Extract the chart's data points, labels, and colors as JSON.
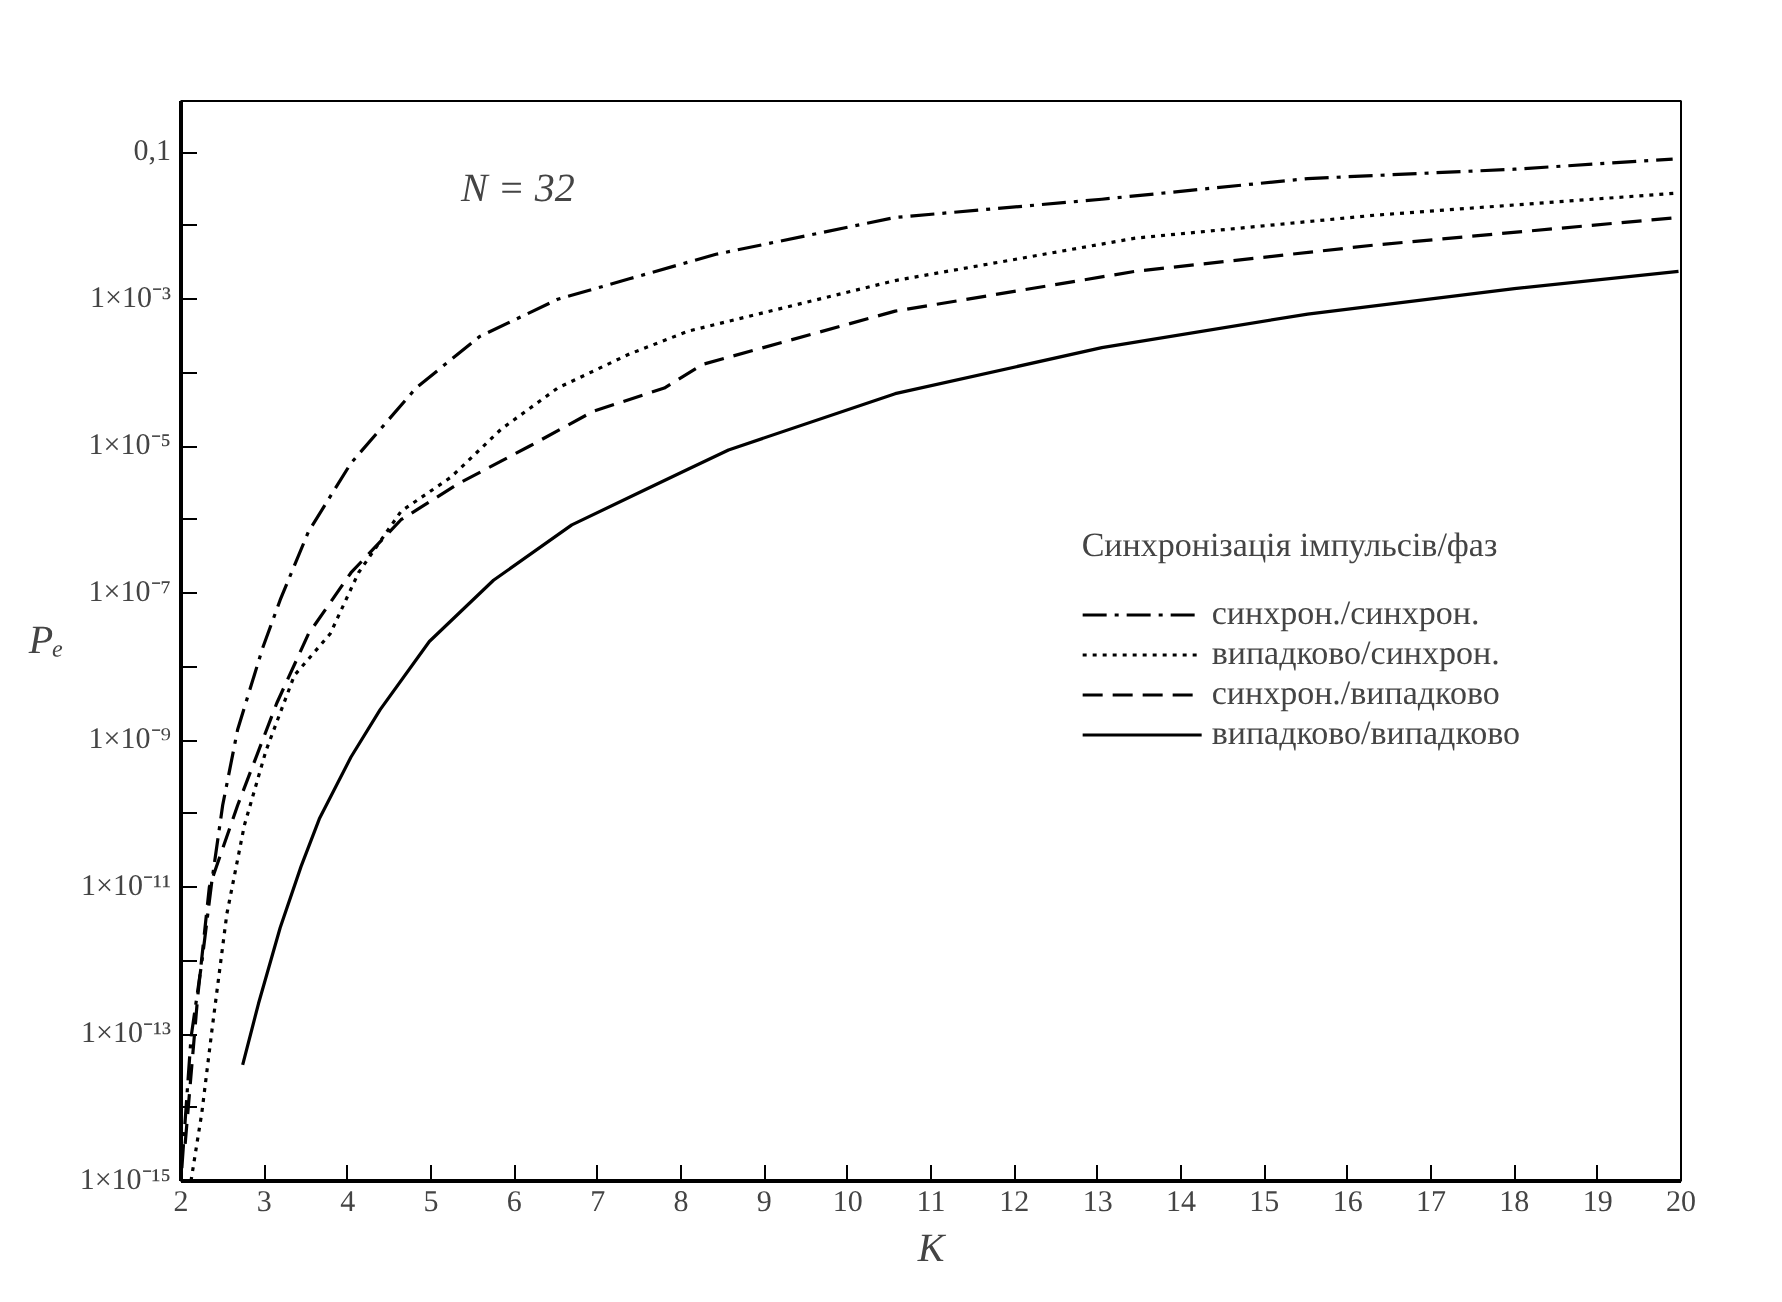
{
  "chart_data": {
    "type": "line",
    "xlabel": "K",
    "ylabel": "Pₑ",
    "legend_title": "Синхронізація імпульсів/фаз",
    "annotations": [
      "N = 32"
    ],
    "log": "y",
    "grid": false,
    "legend": "right",
    "marker": "none",
    "xlim": [
      2,
      20
    ],
    "xticks": [
      2,
      3,
      4,
      5,
      6,
      7,
      8,
      9,
      10,
      11,
      12,
      13,
      14,
      15,
      16,
      17,
      18,
      19,
      20
    ],
    "ylim": [
      1e-15,
      0.5
    ],
    "yticks": [
      {
        "value": 1e-15,
        "label": "1×10⁻¹⁵"
      },
      {
        "value": 1e-14,
        "label": null
      },
      {
        "value": 1e-13,
        "label": "1×10⁻¹³"
      },
      {
        "value": 1e-12,
        "label": null
      },
      {
        "value": 1e-11,
        "label": "1×10⁻¹¹"
      },
      {
        "value": 1e-10,
        "label": null
      },
      {
        "value": 1e-09,
        "label": "1×10⁻⁹"
      },
      {
        "value": 1e-08,
        "label": null
      },
      {
        "value": 1e-07,
        "label": "1×10⁻⁷"
      },
      {
        "value": 1e-06,
        "label": null
      },
      {
        "value": 1e-05,
        "label": "1×10⁻⁵"
      },
      {
        "value": 0.0001,
        "label": null
      },
      {
        "value": 0.001,
        "label": "1×10⁻³"
      },
      {
        "value": 0.01,
        "label": null
      },
      {
        "value": 0.1,
        "label": "0,1"
      }
    ],
    "series": [
      {
        "name": "синхрон./синхрон.",
        "color": "#000000",
        "line_style": "dashdot",
        "x": [
          2.01,
          2.12,
          2.25,
          2.37,
          2.5,
          2.68,
          2.98,
          3.19,
          3.53,
          4.04,
          4.82,
          5.58,
          6.52,
          7.38,
          8.42,
          10.57,
          13.05,
          15.52,
          18.0,
          19.9
        ],
        "values": [
          1.5e-15,
          8.9e-14,
          9.5e-13,
          1.2e-11,
          1.3e-10,
          1.4e-09,
          1.8e-08,
          8.1e-08,
          6.9e-07,
          5.9e-06,
          6.2e-05,
          0.00031,
          0.001,
          0.0019,
          0.0041,
          0.013,
          0.023,
          0.044,
          0.059,
          0.081
        ]
      },
      {
        "name": "випадково/синхрон.",
        "color": "#000000",
        "line_style": "dotted",
        "x": [
          2.12,
          2.25,
          2.37,
          2.55,
          2.76,
          3.02,
          3.36,
          3.79,
          4.13,
          4.64,
          5.24,
          5.84,
          6.52,
          7.38,
          8.09,
          10.57,
          13.45,
          16.34,
          19.97
        ],
        "values": [
          1e-15,
          8.5e-15,
          1.1e-13,
          4.3e-12,
          6.9e-11,
          7.2e-10,
          7.6e-09,
          2.8e-08,
          1.9e-07,
          1.3e-06,
          3.8e-06,
          1.7e-05,
          6.2e-05,
          0.00018,
          0.00037,
          0.0018,
          0.0068,
          0.014,
          0.028
        ]
      },
      {
        "name": "синхрон./випадково",
        "color": "#000000",
        "line_style": "dashed",
        "x": [
          2.05,
          2.2,
          2.34,
          2.68,
          3.15,
          3.53,
          4.04,
          4.64,
          5.33,
          6.18,
          6.95,
          7.8,
          8.26,
          10.57,
          13.45,
          16.34,
          19.97
        ],
        "values": [
          3.2e-15,
          3.2e-13,
          1e-11,
          1.3e-10,
          3.2e-09,
          2.8e-08,
          1.9e-07,
          1e-06,
          3.1e-06,
          1e-05,
          3e-05,
          6.2e-05,
          0.00013,
          0.00069,
          0.0024,
          0.0055,
          0.013
        ]
      },
      {
        "name": "випадково/випадково",
        "color": "#000000",
        "line_style": "solid",
        "x": [
          2.74,
          2.93,
          3.19,
          3.44,
          3.66,
          4.04,
          4.39,
          4.98,
          5.75,
          6.69,
          7.55,
          8.09,
          8.57,
          10.57,
          13.05,
          15.52,
          18.0,
          19.97
        ],
        "values": [
          3.8e-14,
          2.6e-13,
          2.8e-12,
          1.9e-11,
          8.5e-11,
          5.9e-10,
          2.6e-09,
          2.2e-08,
          1.5e-07,
          8.5e-07,
          2.5e-06,
          4.9e-06,
          8.9e-06,
          5.2e-05,
          0.00022,
          0.00063,
          0.0014,
          0.0024
        ]
      }
    ]
  }
}
